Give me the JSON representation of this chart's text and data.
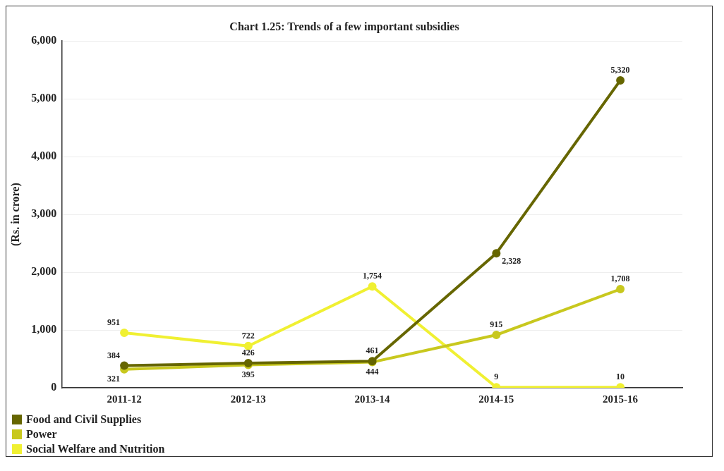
{
  "chart_data": {
    "type": "line",
    "title": "Chart 1.25: Trends of a few important subsidies",
    "ylabel": "(Rs. in crore)",
    "categories": [
      "2011-12",
      "2012-13",
      "2013-14",
      "2014-15",
      "2015-16"
    ],
    "series": [
      {
        "name": "Food and Civil Supplies",
        "color": "#666600",
        "values": [
          384,
          426,
          461,
          2328,
          5320
        ],
        "value_labels": [
          "384",
          "426",
          "461",
          "2,328",
          "5,320"
        ]
      },
      {
        "name": "Power",
        "color": "#c8c81e",
        "values": [
          321,
          395,
          444,
          915,
          1708
        ],
        "value_labels": [
          "321",
          "395",
          "444",
          "915",
          "1,708"
        ]
      },
      {
        "name": "Social Welfare and Nutrition",
        "color": "#f0f032",
        "values": [
          951,
          722,
          1754,
          9,
          10
        ],
        "value_labels": [
          "951",
          "722",
          "1,754",
          "9",
          "10"
        ]
      }
    ],
    "ylim": [
      0,
      6000
    ],
    "yticks": [
      {
        "value": 0,
        "label": "0"
      },
      {
        "value": 1000,
        "label": "1,000"
      },
      {
        "value": 2000,
        "label": "2,000"
      },
      {
        "value": 3000,
        "label": "3,000"
      },
      {
        "value": 4000,
        "label": "4,000"
      },
      {
        "value": 5000,
        "label": "5,000"
      },
      {
        "value": 6000,
        "label": "6,000"
      }
    ],
    "grid": "y",
    "legend": "bottom left",
    "marker": "circle",
    "line_style": "solid"
  }
}
